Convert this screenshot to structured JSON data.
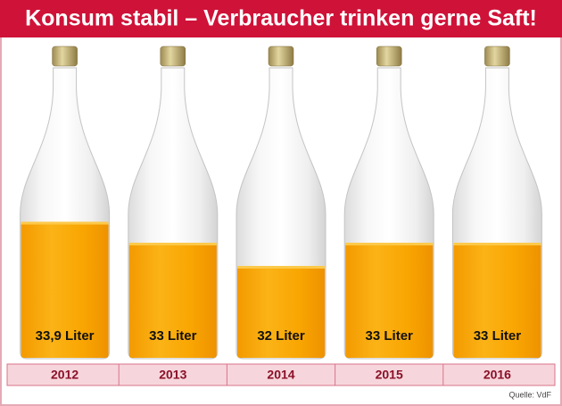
{
  "chart_data": {
    "type": "bar",
    "title": "Konsum stabil – Verbraucher trinken gerne Saft!",
    "categories": [
      "2012",
      "2013",
      "2014",
      "2015",
      "2016"
    ],
    "values": [
      33.9,
      33,
      32,
      33,
      33
    ],
    "value_labels": [
      "33,9 Liter",
      "33 Liter",
      "32 Liter",
      "33 Liter",
      "33 Liter"
    ],
    "color": "#f9a602",
    "ylim": [
      28,
      38
    ],
    "source": "Quelle: VdF"
  }
}
